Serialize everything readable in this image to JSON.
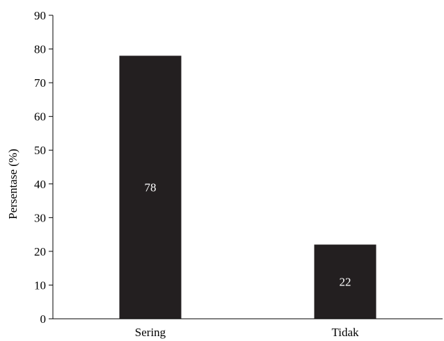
{
  "chart_data": {
    "type": "bar",
    "categories": [
      "Sering",
      "Tidak"
    ],
    "values": [
      78,
      22
    ],
    "data_labels": [
      "78",
      "22"
    ],
    "title": "",
    "xlabel": "",
    "ylabel": "Persentase (%)",
    "ylim": [
      0,
      90
    ],
    "yticks": [
      0,
      10,
      20,
      30,
      40,
      50,
      60,
      70,
      80,
      90
    ],
    "ytick_labels": [
      "0",
      "10",
      "20",
      "30",
      "40",
      "50",
      "60",
      "70",
      "80",
      "90"
    ],
    "grid": false,
    "legend": "none",
    "bar_color": "#231f20",
    "label_color": "#ffffff"
  }
}
